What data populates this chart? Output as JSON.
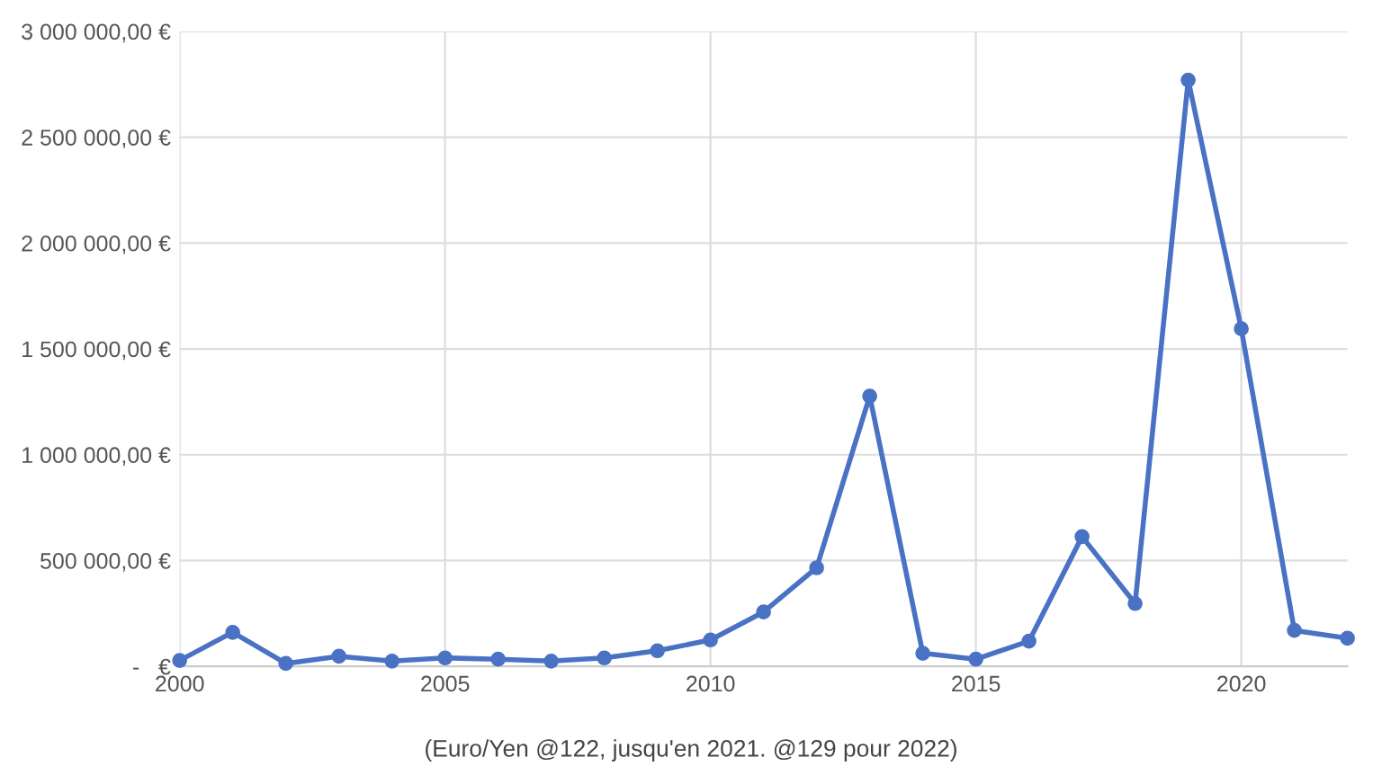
{
  "chart_data": {
    "type": "line",
    "x": [
      2000,
      2001,
      2002,
      2003,
      2004,
      2005,
      2006,
      2007,
      2008,
      2009,
      2010,
      2011,
      2012,
      2013,
      2014,
      2015,
      2016,
      2017,
      2018,
      2019,
      2020,
      2021,
      2022
    ],
    "series": [
      {
        "color": "#4a72c4",
        "values": [
          28000,
          161000,
          14000,
          48000,
          25000,
          40000,
          34000,
          25000,
          40000,
          74000,
          125000,
          257000,
          466000,
          1277000,
          62000,
          34000,
          119000,
          613000,
          297000,
          2770000,
          1595000,
          170000,
          133000
        ]
      }
    ],
    "xlim": [
      2000,
      2022
    ],
    "xticks": [
      2000,
      2005,
      2010,
      2015,
      2020
    ],
    "ylim": [
      0,
      3000000
    ],
    "yticks": [
      {
        "value": 0,
        "label": "-   €"
      },
      {
        "value": 500000,
        "label": "500 000,00 €"
      },
      {
        "value": 1000000,
        "label": "1 000 000,00 €"
      },
      {
        "value": 1500000,
        "label": "1 500 000,00 €"
      },
      {
        "value": 2000000,
        "label": "2 000 000,00 €"
      },
      {
        "value": 2500000,
        "label": "2 500 000,00 €"
      },
      {
        "value": 3000000,
        "label": "3 000 000,00 €"
      }
    ],
    "grid": true,
    "marker": "circle",
    "line_style": "solid",
    "annotations": [
      "(Euro/Yen @122, jusqu'en 2021. @129 pour 2022)"
    ]
  }
}
